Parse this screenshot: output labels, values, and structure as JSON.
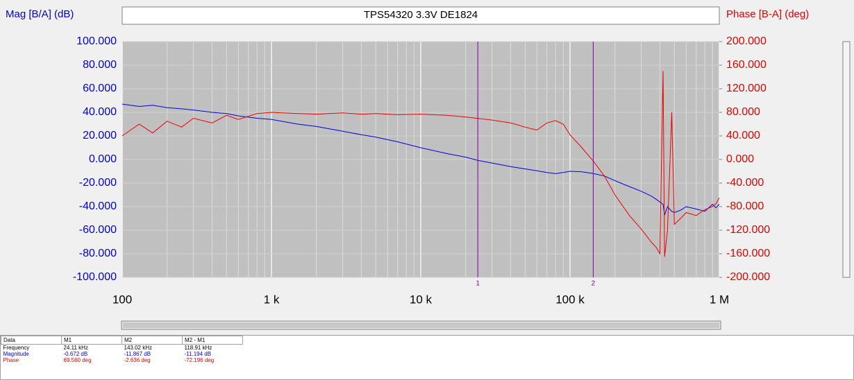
{
  "chart_data": {
    "type": "line",
    "title": "TPS54320 3.3V DE1824",
    "y_label": "Mag [B/A] (dB)",
    "y2_label": "Phase [B-A] (deg)",
    "x_log": true,
    "grid": true,
    "xlim": [
      100,
      1000000
    ],
    "xticks": [
      100,
      {
        "value": 1000,
        "label": "1 k"
      },
      {
        "value": 10000,
        "label": "10 k"
      },
      {
        "value": 100000,
        "label": "100 k"
      },
      {
        "value": 1000000,
        "label": "1 M"
      }
    ],
    "ylim": [
      -100,
      100
    ],
    "yticks": [
      {
        "value": 100,
        "label": "100.000"
      },
      {
        "value": 80,
        "label": "80.000"
      },
      {
        "value": 60,
        "label": "60.000"
      },
      {
        "value": 40,
        "label": "40.000"
      },
      {
        "value": 20,
        "label": "20.000"
      },
      {
        "value": 0,
        "label": "0.000"
      },
      {
        "value": -20,
        "label": "-20.000"
      },
      {
        "value": -40,
        "label": "-40.000"
      },
      {
        "value": -60,
        "label": "-60.000"
      },
      {
        "value": -80,
        "label": "-80.000"
      },
      {
        "value": -100,
        "label": "-100.000"
      }
    ],
    "y2lim": [
      -200,
      200
    ],
    "y2ticks": [
      {
        "value": 200,
        "label": "200.000"
      },
      {
        "value": 160,
        "label": "160.000"
      },
      {
        "value": 120,
        "label": "120.000"
      },
      {
        "value": 80,
        "label": "80.000"
      },
      {
        "value": 40,
        "label": "40.000"
      },
      {
        "value": 0,
        "label": "0.000"
      },
      {
        "value": -40,
        "label": "-40.000"
      },
      {
        "value": -80,
        "label": "-80.000"
      },
      {
        "value": -120,
        "label": "-120.000"
      },
      {
        "value": -160,
        "label": "-160.000"
      },
      {
        "value": -200,
        "label": "-200.000"
      }
    ],
    "x": [
      100,
      130,
      160,
      200,
      250,
      300,
      400,
      500,
      600,
      800,
      1000,
      1500,
      2000,
      3000,
      4000,
      5000,
      7000,
      10000,
      15000,
      20000,
      24110,
      30000,
      40000,
      50000,
      60000,
      70000,
      80000,
      90000,
      100000,
      120000,
      143020,
      170000,
      200000,
      250000,
      300000,
      350000,
      380000,
      400000,
      420000,
      430000,
      450000,
      480000,
      500000,
      550000,
      600000,
      700000,
      800000,
      900000,
      950000,
      1000000
    ],
    "series": [
      {
        "color": "#0000dd",
        "values": [
          47,
          45,
          46,
          44,
          43,
          42,
          40,
          39,
          37,
          35,
          34,
          30,
          28,
          24,
          21,
          19,
          15,
          10,
          5,
          2,
          -0.7,
          -3,
          -6,
          -8,
          -9.5,
          -11,
          -12,
          -11,
          -10,
          -10.5,
          -11.9,
          -14,
          -18,
          -23,
          -27,
          -31,
          -34,
          -36,
          -38,
          -47,
          -40,
          -44,
          -45,
          -43,
          -40,
          -42,
          -44,
          -38,
          -41,
          -38
        ]
      },
      {
        "color": "#ee0000",
        "axis": "y2",
        "values": [
          40,
          60,
          45,
          65,
          55,
          70,
          62,
          75,
          68,
          78,
          80,
          78,
          77,
          79,
          77,
          78,
          76,
          77,
          75,
          72,
          69.6,
          67,
          62,
          55,
          50,
          62,
          66,
          60,
          42,
          20,
          -2.6,
          -28,
          -60,
          -95,
          -118,
          -140,
          -150,
          -160,
          150,
          -165,
          -120,
          80,
          -110,
          -100,
          -90,
          -95,
          -85,
          -80,
          -75,
          -65
        ]
      }
    ],
    "markers": [
      {
        "label": "1",
        "x": 24110
      },
      {
        "label": "2",
        "x": 143020
      }
    ]
  },
  "table": {
    "header": [
      "Data",
      "M1",
      "M2",
      "M2 - M1"
    ],
    "rows": [
      [
        "Frequency",
        "24.11 kHz",
        "143.02 kHz",
        "118.91 kHz"
      ],
      [
        "Magnitude",
        "-0.672 dB",
        "-11.867 dB",
        "-11.194 dB"
      ],
      [
        "Phase",
        "69.560 deg",
        "-2.636 deg",
        "-72.196 deg"
      ]
    ]
  }
}
